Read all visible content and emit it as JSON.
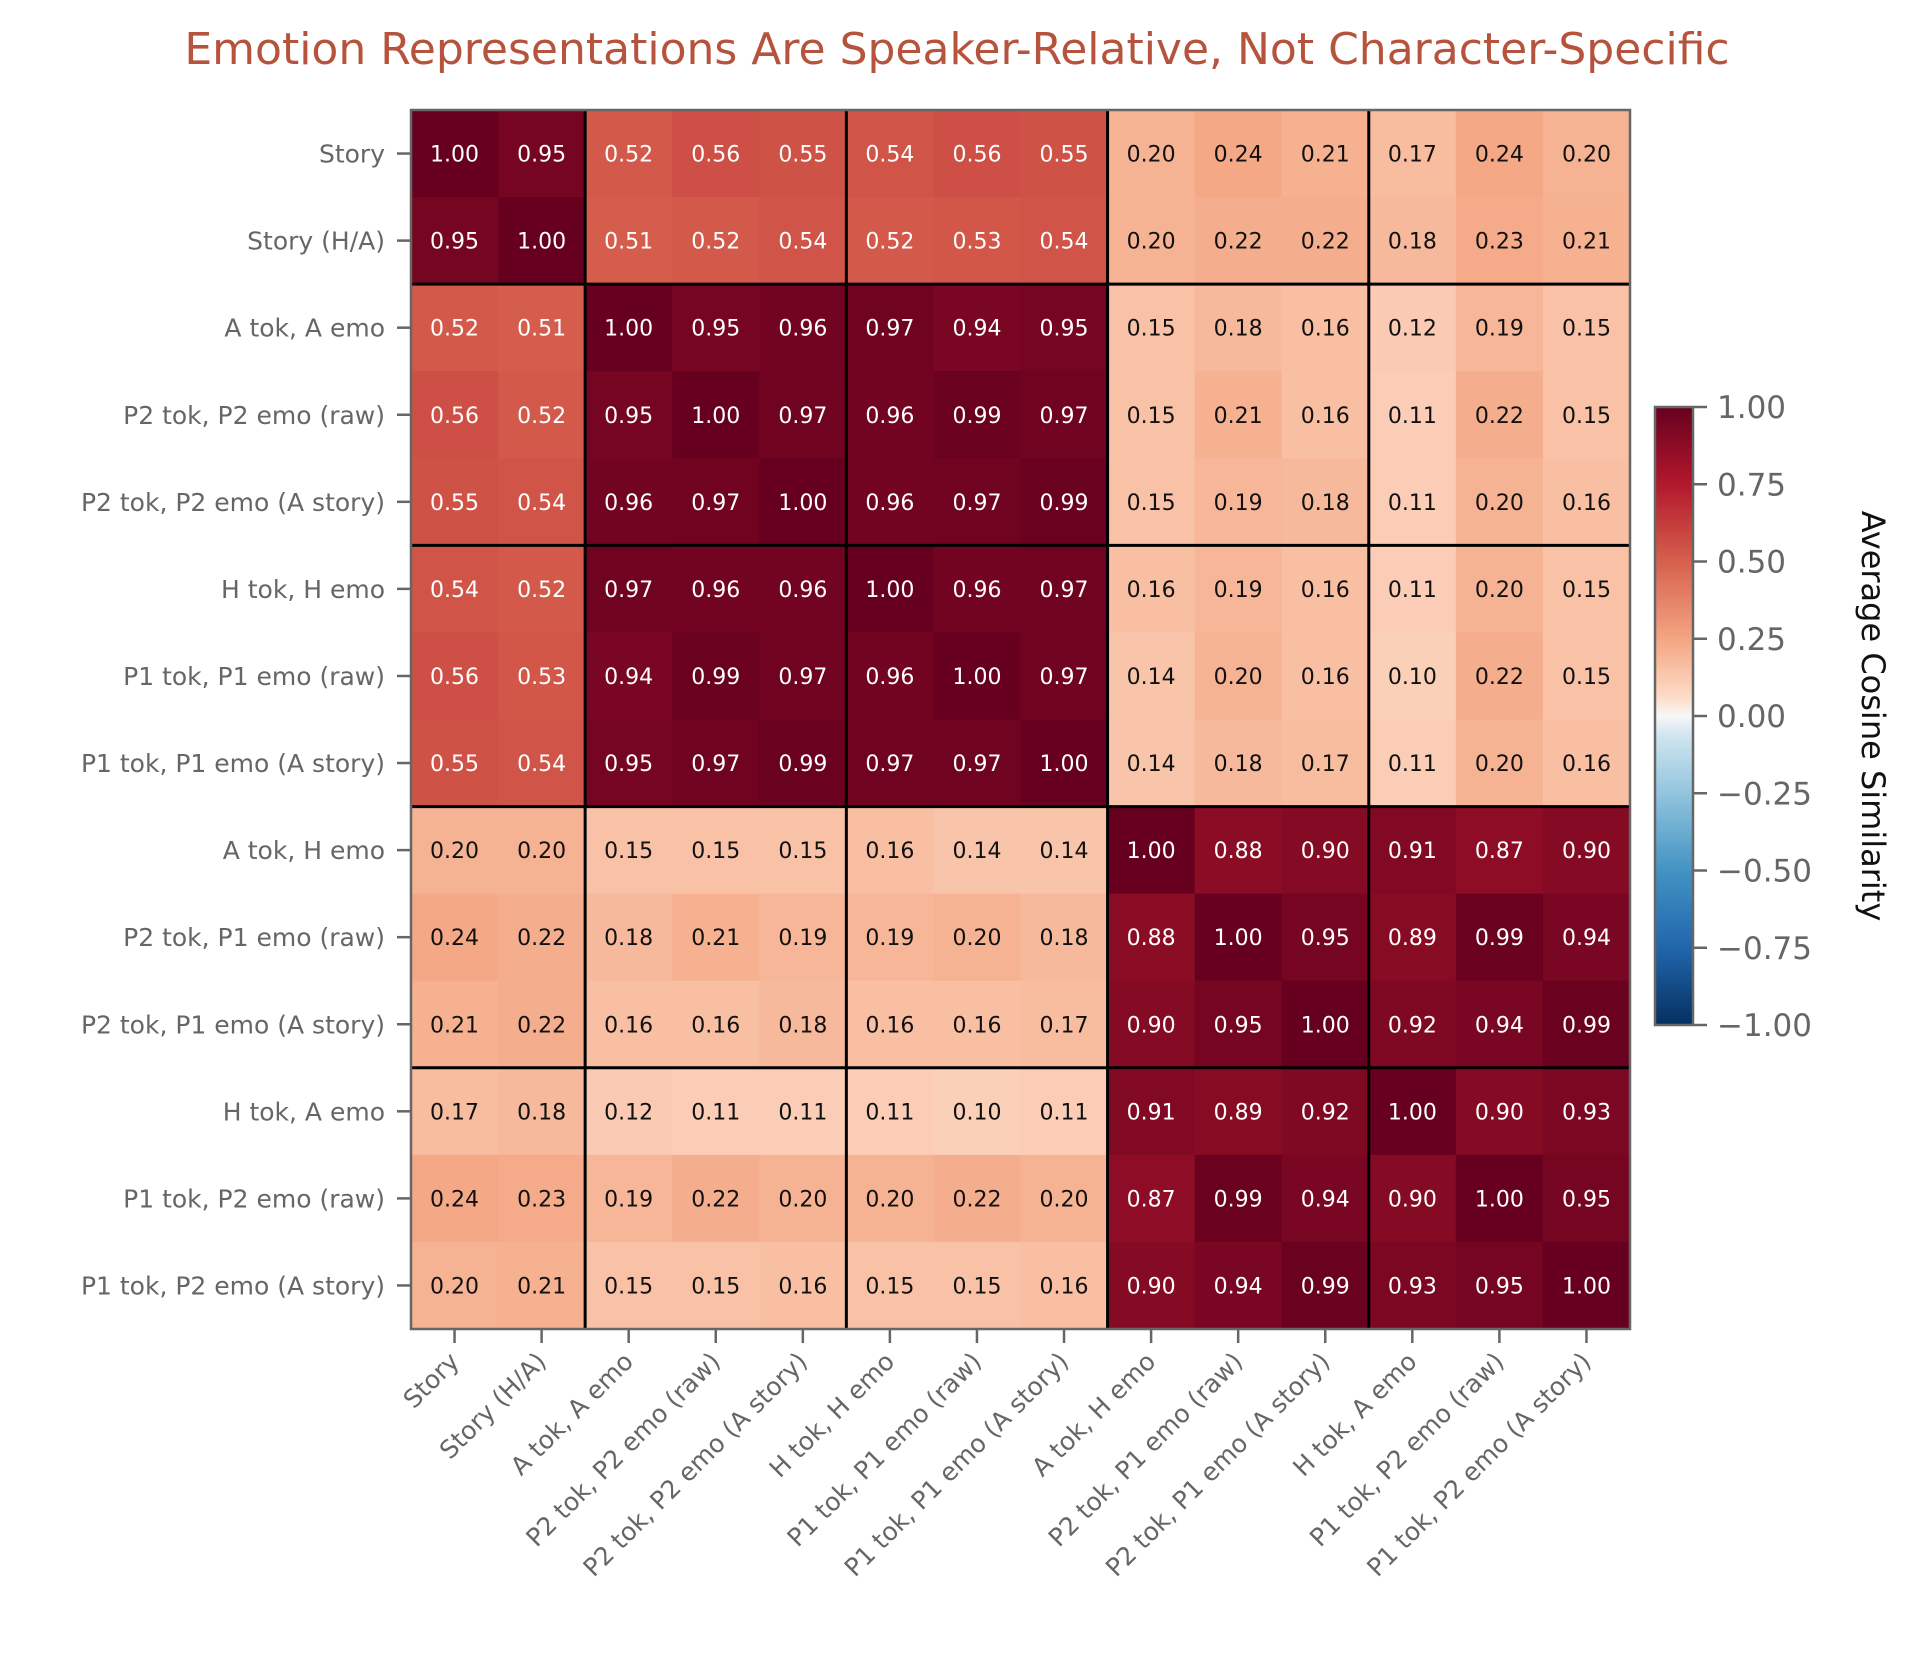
{
  "chart_data": {
    "type": "heatmap",
    "title": "Emotion Representations Are Speaker-Relative, Not Character-Specific",
    "title_color": "#b5533c",
    "labels": [
      "Story",
      "Story (H/A)",
      "A tok, A emo",
      "P2 tok, P2 emo (raw)",
      "P2 tok, P2 emo (A story)",
      "H tok, H emo",
      "P1 tok, P1 emo (raw)",
      "P1 tok, P1 emo (A story)",
      "A tok, H emo",
      "P2 tok, P1 emo (raw)",
      "P2 tok, P1 emo (A story)",
      "H tok, A emo",
      "P1 tok, P2 emo (raw)",
      "P1 tok, P2 emo (A story)"
    ],
    "group_boundaries_after_index": [
      1,
      4,
      7,
      10
    ],
    "values": [
      [
        1.0,
        0.95,
        0.52,
        0.56,
        0.55,
        0.54,
        0.56,
        0.55,
        0.2,
        0.24,
        0.21,
        0.17,
        0.24,
        0.2
      ],
      [
        0.95,
        1.0,
        0.51,
        0.52,
        0.54,
        0.52,
        0.53,
        0.54,
        0.2,
        0.22,
        0.22,
        0.18,
        0.23,
        0.21
      ],
      [
        0.52,
        0.51,
        1.0,
        0.95,
        0.96,
        0.97,
        0.94,
        0.95,
        0.15,
        0.18,
        0.16,
        0.12,
        0.19,
        0.15
      ],
      [
        0.56,
        0.52,
        0.95,
        1.0,
        0.97,
        0.96,
        0.99,
        0.97,
        0.15,
        0.21,
        0.16,
        0.11,
        0.22,
        0.15
      ],
      [
        0.55,
        0.54,
        0.96,
        0.97,
        1.0,
        0.96,
        0.97,
        0.99,
        0.15,
        0.19,
        0.18,
        0.11,
        0.2,
        0.16
      ],
      [
        0.54,
        0.52,
        0.97,
        0.96,
        0.96,
        1.0,
        0.96,
        0.97,
        0.16,
        0.19,
        0.16,
        0.11,
        0.2,
        0.15
      ],
      [
        0.56,
        0.53,
        0.94,
        0.99,
        0.97,
        0.96,
        1.0,
        0.97,
        0.14,
        0.2,
        0.16,
        0.1,
        0.22,
        0.15
      ],
      [
        0.55,
        0.54,
        0.95,
        0.97,
        0.99,
        0.97,
        0.97,
        1.0,
        0.14,
        0.18,
        0.17,
        0.11,
        0.2,
        0.16
      ],
      [
        0.2,
        0.2,
        0.15,
        0.15,
        0.15,
        0.16,
        0.14,
        0.14,
        1.0,
        0.88,
        0.9,
        0.91,
        0.87,
        0.9
      ],
      [
        0.24,
        0.22,
        0.18,
        0.21,
        0.19,
        0.19,
        0.2,
        0.18,
        0.88,
        1.0,
        0.95,
        0.89,
        0.99,
        0.94
      ],
      [
        0.21,
        0.22,
        0.16,
        0.16,
        0.18,
        0.16,
        0.16,
        0.17,
        0.9,
        0.95,
        1.0,
        0.92,
        0.94,
        0.99
      ],
      [
        0.17,
        0.18,
        0.12,
        0.11,
        0.11,
        0.11,
        0.1,
        0.11,
        0.91,
        0.89,
        0.92,
        1.0,
        0.9,
        0.93
      ],
      [
        0.24,
        0.23,
        0.19,
        0.22,
        0.2,
        0.2,
        0.22,
        0.2,
        0.87,
        0.99,
        0.94,
        0.9,
        1.0,
        0.95
      ],
      [
        0.2,
        0.21,
        0.15,
        0.15,
        0.16,
        0.15,
        0.15,
        0.16,
        0.9,
        0.94,
        0.99,
        0.93,
        0.95,
        1.0
      ]
    ],
    "colormap": "RdBu_r",
    "vmin": -1.0,
    "vmax": 1.0,
    "colorbar": {
      "label": "Average Cosine Similarity",
      "ticks": [
        1.0,
        0.75,
        0.5,
        0.25,
        0.0,
        -0.25,
        -0.5,
        -0.75,
        -1.0
      ],
      "tick_labels": [
        "1.00",
        "0.75",
        "0.50",
        "0.25",
        "0.00",
        "−0.25",
        "−0.50",
        "−0.75",
        "−1.00"
      ],
      "placement": "right"
    },
    "xlabel": "",
    "ylabel": "",
    "grid": false
  }
}
